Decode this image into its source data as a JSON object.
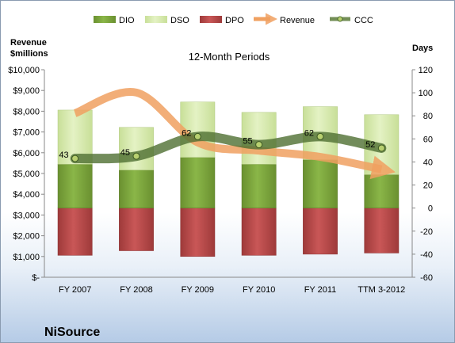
{
  "chart_data": {
    "type": "bar",
    "title": "12-Month Periods",
    "company": "NiSource",
    "left_axis": {
      "label_line1": "Revenue",
      "label_line2": "$millions",
      "ylim": [
        0,
        10000
      ],
      "ticks": [
        "$-",
        "$1,000",
        "$2,000",
        "$3,000",
        "$4,000",
        "$5,000",
        "$6,000",
        "$7,000",
        "$8,000",
        "$9,000",
        "$10,000"
      ]
    },
    "right_axis": {
      "label": "Days",
      "ylim": [
        -60,
        120
      ],
      "ticks": [
        "-60",
        "-40",
        "-20",
        "0",
        "20",
        "40",
        "60",
        "80",
        "100",
        "120"
      ]
    },
    "categories": [
      "FY 2007",
      "FY 2008",
      "FY 2009",
      "FY 2010",
      "FY 2011",
      "TTM 3-2012"
    ],
    "stacks": {
      "DPO": [
        -41,
        -37,
        -42,
        -41,
        -40,
        -39
      ],
      "DIO": [
        38,
        33,
        44,
        38,
        42,
        29
      ],
      "DSO": [
        47,
        37,
        48,
        45,
        46,
        52
      ]
    },
    "series": [
      {
        "name": "DIO",
        "color": "#7aa33a"
      },
      {
        "name": "DSO",
        "color": "#d4e8a8"
      },
      {
        "name": "DPO",
        "color": "#b84848"
      },
      {
        "name": "Revenue",
        "color": "#f0a060",
        "values": [
          7900,
          8900,
          6500,
          6100,
          5800,
          5200
        ]
      },
      {
        "name": "CCC",
        "color": "#5a7a3a",
        "values": [
          43,
          45,
          62,
          55,
          62,
          52
        ]
      }
    ],
    "ccc_labels": [
      "43",
      "45",
      "62",
      "55",
      "62",
      "52"
    ],
    "legend_position": "top"
  }
}
